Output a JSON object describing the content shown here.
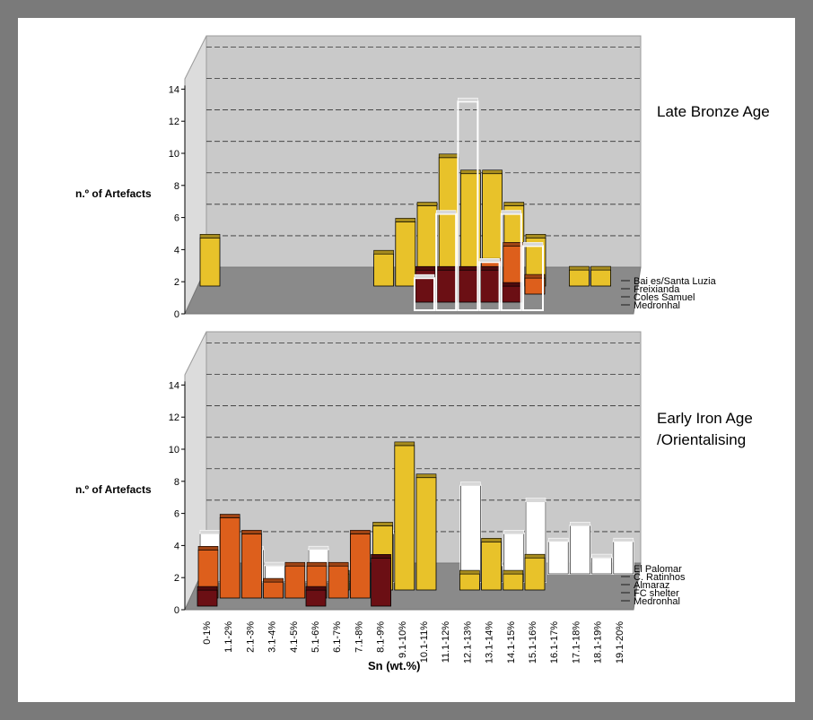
{
  "colors": {
    "background": "#7a7a7a",
    "wall": "#c9c9c9",
    "floor": "#8a8a8a",
    "yellow": "#e8c22a",
    "orange": "#dd5f1c",
    "darkred": "#6b0f14",
    "white": "#ffffff"
  },
  "chart_data": {
    "type": "bar",
    "xlabel": "Sn (wt.%)",
    "categories": [
      "0-1%",
      "1.1-2%",
      "2.1-3%",
      "3.1-4%",
      "4.1-5%",
      "5.1-6%",
      "6.1-7%",
      "7.1-8%",
      "8.1-9%",
      "9.1-10%",
      "10.1-11%",
      "11.1-12%",
      "12.1-13%",
      "13.1-14%",
      "14.1-15%",
      "15.1-16%",
      "16.1-17%",
      "17.1-18%",
      "18.1-19%",
      "19.1-20%"
    ],
    "panels": [
      {
        "title": "Late Bronze Age",
        "ylabel": "n.º of Artefacts",
        "ylim": [
          0,
          14
        ],
        "yticks": [
          0,
          2,
          4,
          6,
          8,
          10,
          12,
          14
        ],
        "series": [
          {
            "name": "Bai es/Santa Luzia",
            "color": "yellow",
            "values": [
              3,
              0,
              0,
              0,
              0,
              0,
              0,
              0,
              2,
              4,
              5,
              8,
              7,
              7,
              5,
              3,
              0,
              1,
              1,
              0
            ]
          },
          {
            "name": "Freixianda",
            "color": "orange",
            "values": [
              0,
              0,
              0,
              0,
              0,
              0,
              0,
              0,
              0,
              0,
              0,
              0,
              0,
              2,
              3,
              1,
              0,
              0,
              0,
              0
            ]
          },
          {
            "name": "Coles Samuel",
            "color": "darkred",
            "values": [
              0,
              0,
              0,
              0,
              0,
              0,
              0,
              0,
              0,
              0,
              2,
              2,
              2,
              2,
              1,
              0,
              0,
              0,
              0,
              0
            ]
          },
          {
            "name": "Medronhal",
            "color": "white",
            "values": [
              0,
              0,
              0,
              0,
              0,
              0,
              0,
              0,
              0,
              0,
              2,
              6,
              13,
              3,
              6,
              4,
              0,
              0,
              0,
              0
            ]
          }
        ]
      },
      {
        "title": "Early Iron Age /Orientalising",
        "ylabel": "n.º of Artefacts",
        "ylim": [
          0,
          14
        ],
        "yticks": [
          0,
          2,
          4,
          6,
          8,
          10,
          12,
          14
        ],
        "series": [
          {
            "name": "El Palomar",
            "color": "white",
            "values": [
              0,
              0,
              0,
              0,
              0,
              0,
              0,
              0,
              0,
              0,
              0,
              0,
              0,
              0,
              0,
              0,
              2,
              3,
              1,
              2
            ]
          },
          {
            "name": "C. Ratinhos",
            "color": "white",
            "values": [
              3,
              0,
              2,
              1,
              1,
              2,
              1,
              0,
              3,
              0,
              0,
              0,
              6,
              1,
              3,
              5,
              0,
              0,
              0,
              0
            ]
          },
          {
            "name": "Almaraz",
            "color": "yellow",
            "values": [
              0,
              0,
              0,
              0,
              0,
              0,
              1,
              0,
              4,
              9,
              7,
              0,
              1,
              3,
              1,
              2,
              0,
              0,
              0,
              0
            ]
          },
          {
            "name": "FC shelter",
            "color": "orange",
            "values": [
              3,
              5,
              4,
              1,
              2,
              2,
              2,
              4,
              0,
              0,
              0,
              0,
              0,
              0,
              0,
              0,
              0,
              0,
              0,
              0
            ]
          },
          {
            "name": "Medronhal",
            "color": "darkred",
            "values": [
              1,
              0,
              0,
              0,
              0,
              1,
              0,
              0,
              3,
              0,
              0,
              0,
              0,
              0,
              0,
              0,
              0,
              0,
              0,
              0
            ]
          }
        ]
      }
    ]
  }
}
